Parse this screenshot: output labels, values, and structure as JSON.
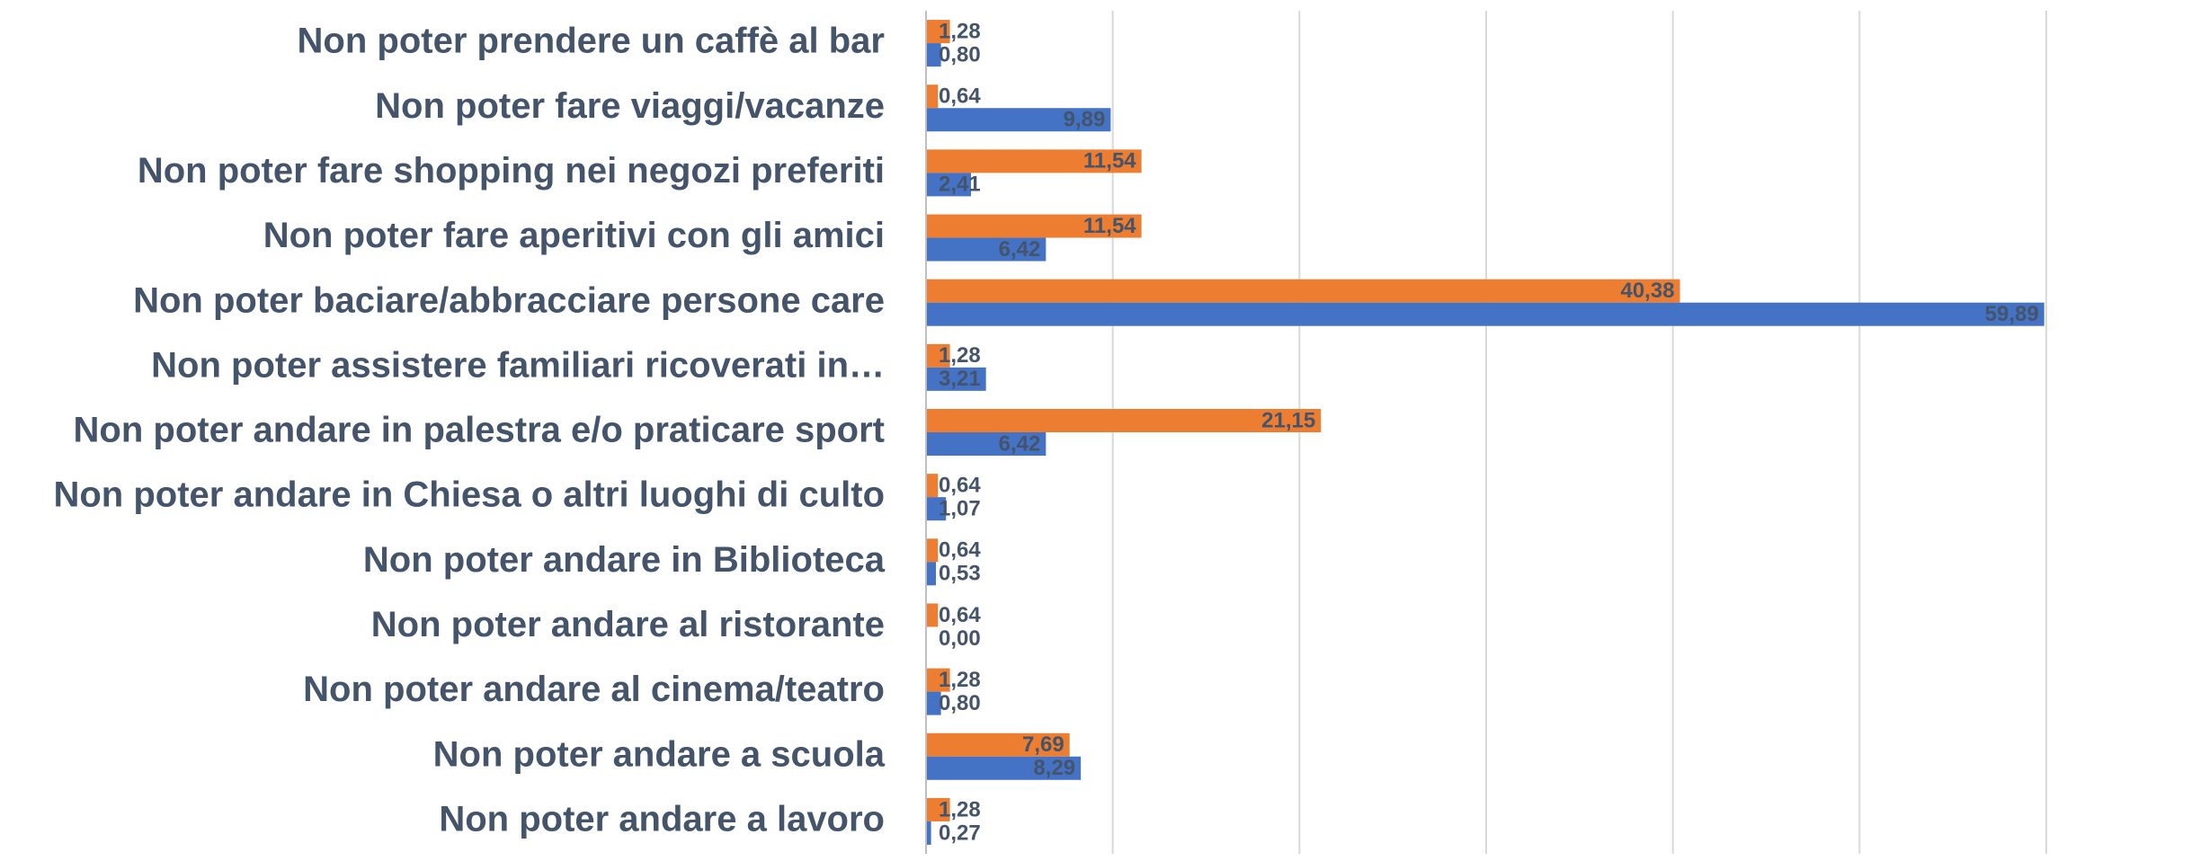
{
  "chart_data": {
    "type": "bar",
    "orientation": "horizontal",
    "categories": [
      "Non poter prendere un caffè al bar",
      "Non poter fare viaggi/vacanze",
      "Non poter fare shopping nei negozi preferiti",
      "Non poter fare aperitivi con gli amici",
      "Non poter baciare/abbracciare persone care",
      "Non poter assistere familiari ricoverati in…",
      "Non poter andare in palestra e/o praticare sport",
      "Non poter andare in Chiesa o altri luoghi di culto",
      "Non poter andare in Biblioteca",
      "Non poter andare al ristorante",
      "Non poter andare al cinema/teatro",
      "Non poter andare a scuola",
      "Non poter andare a lavoro"
    ],
    "series": [
      {
        "color": "#ed7d31",
        "values": [
          1.28,
          0.64,
          11.54,
          11.54,
          40.38,
          1.28,
          21.15,
          0.64,
          0.64,
          0.64,
          1.28,
          7.69,
          1.28
        ],
        "value_labels": [
          "1,28",
          "0,64",
          "11,54",
          "11,54",
          "40,38",
          "1,28",
          "21,15",
          "0,64",
          "0,64",
          "0,64",
          "1,28",
          "7,69",
          "1,28"
        ]
      },
      {
        "color": "#4472c4",
        "values": [
          0.8,
          9.89,
          2.41,
          6.42,
          59.89,
          3.21,
          6.42,
          1.07,
          0.53,
          0.0,
          0.8,
          8.29,
          0.27
        ],
        "value_labels": [
          "0,80",
          "9,89",
          "2,41",
          "6,42",
          "59,89",
          "3,21",
          "6,42",
          "1,07",
          "0,53",
          "0,00",
          "0,80",
          "8,29",
          "0,27"
        ]
      }
    ],
    "xlim": [
      0,
      60
    ],
    "xticks": [
      0,
      10,
      20,
      30,
      40,
      50,
      60
    ],
    "grid": true
  }
}
